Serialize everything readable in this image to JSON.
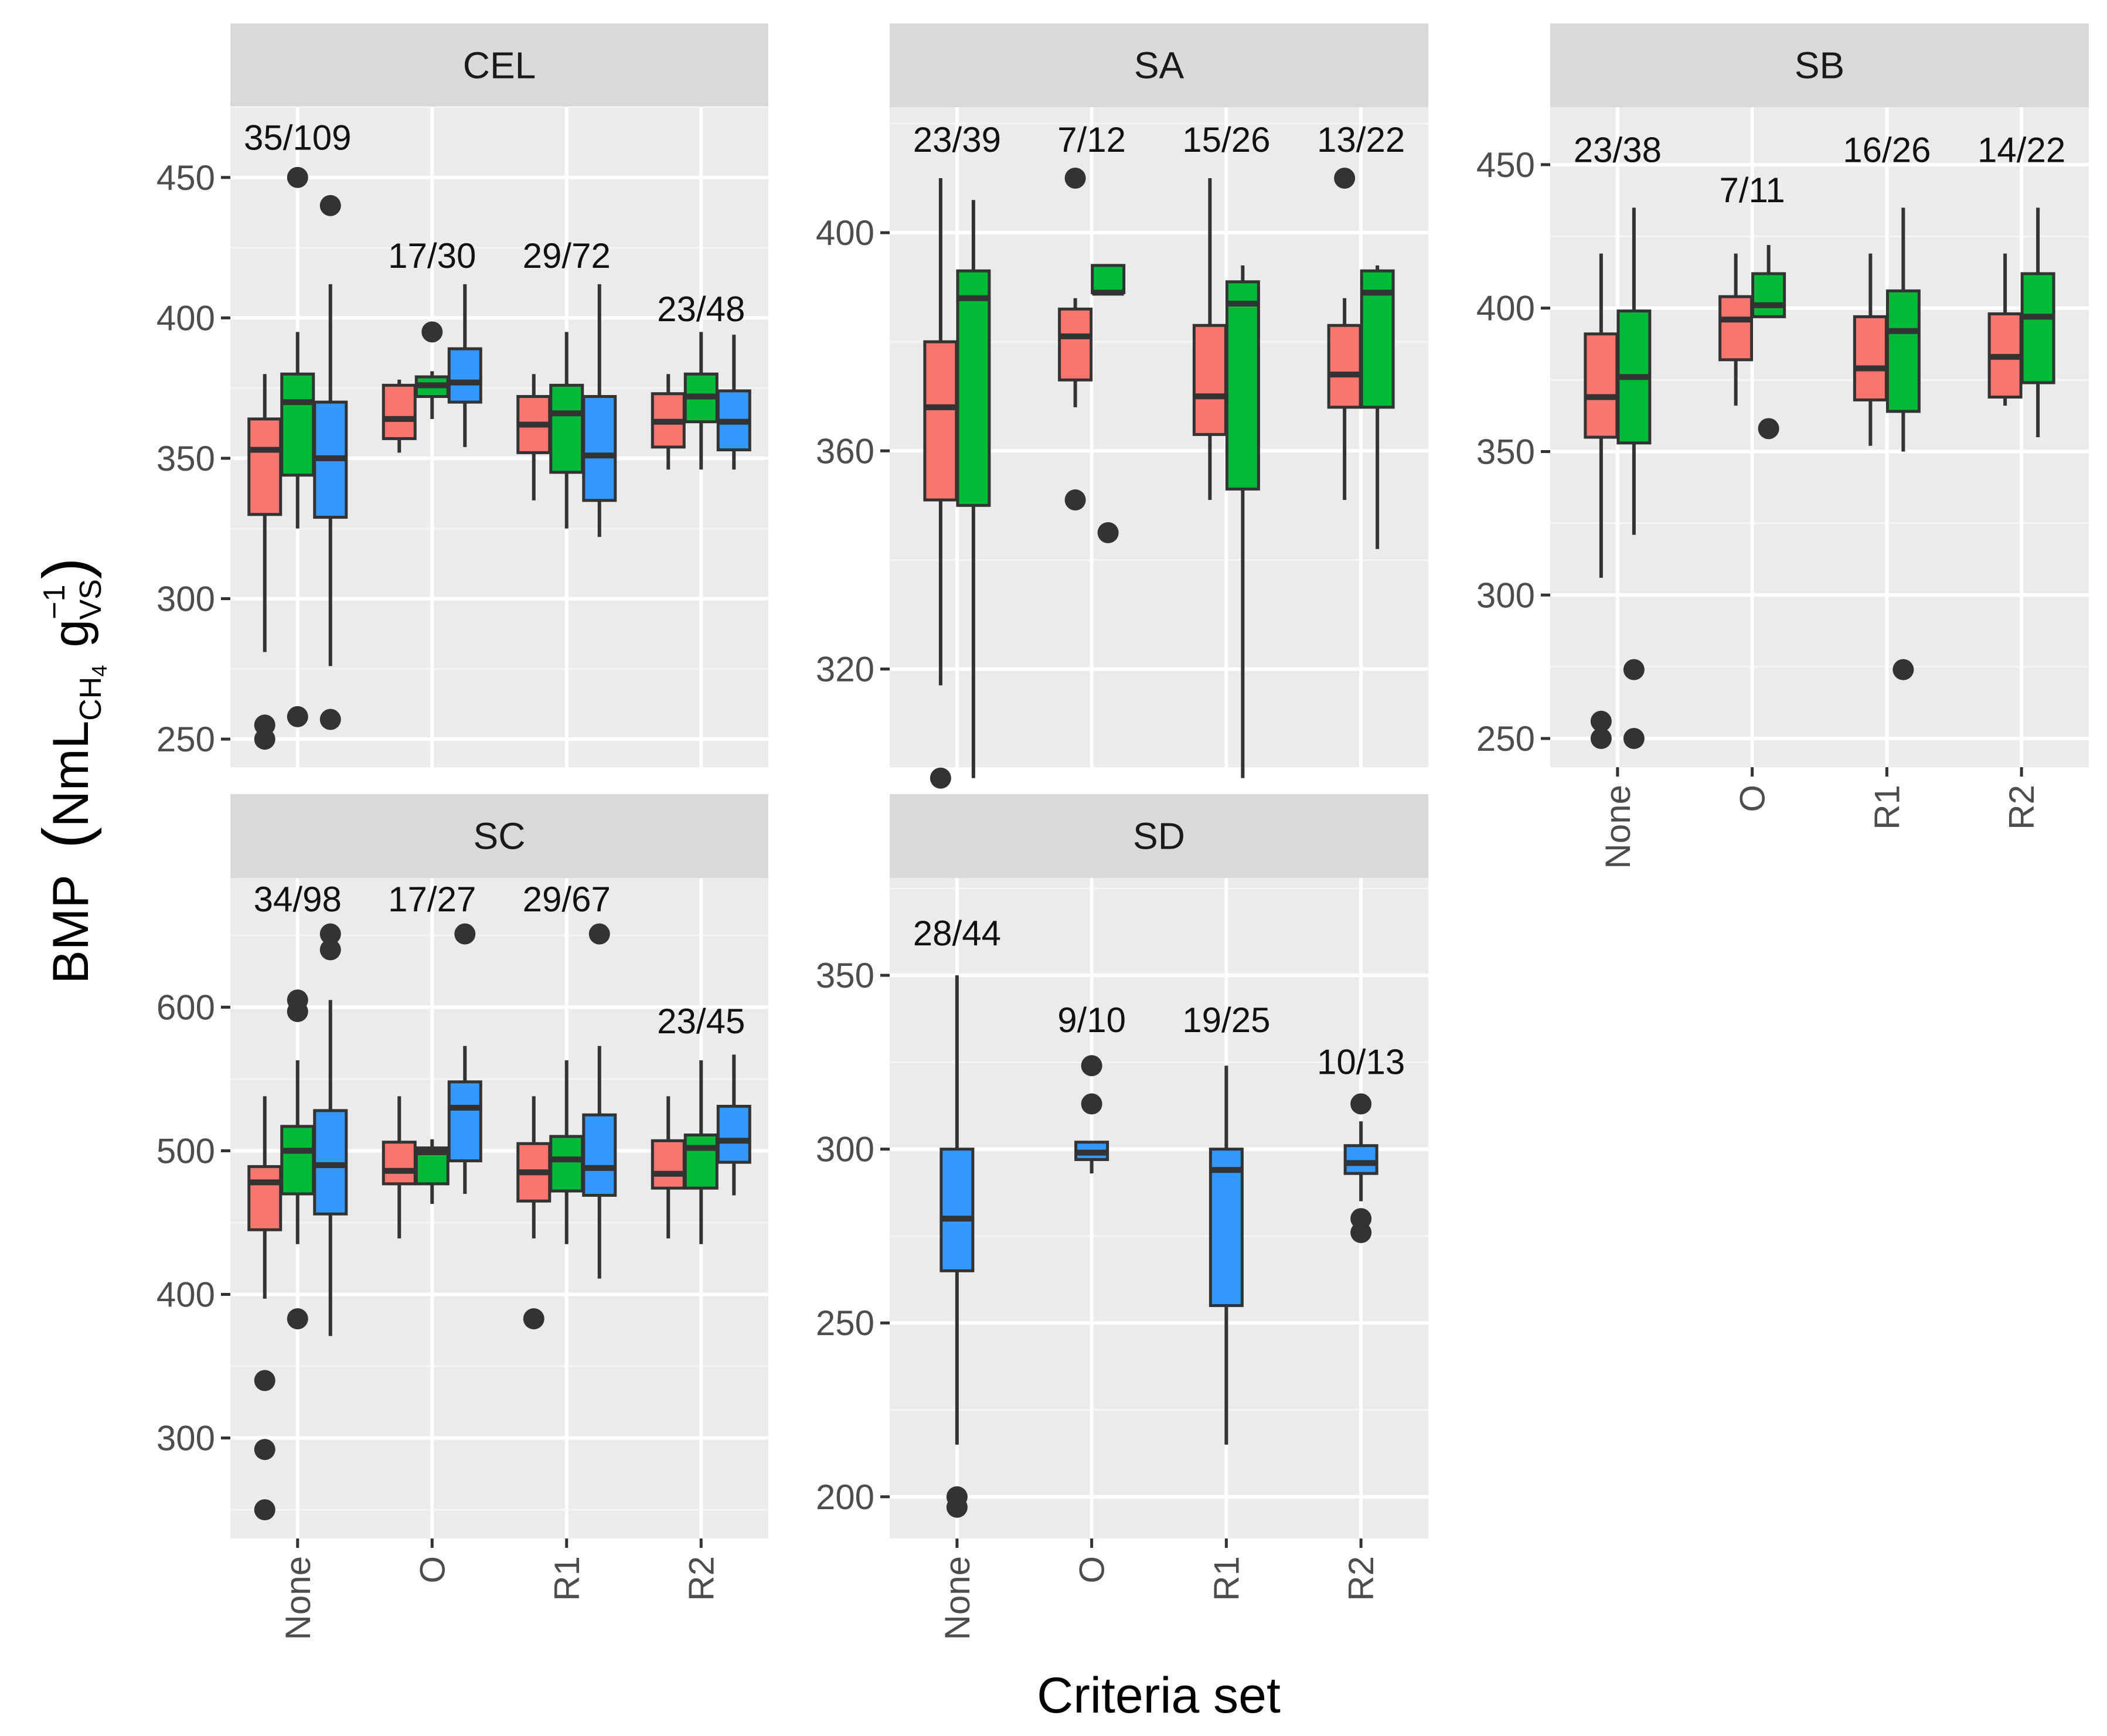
{
  "x_axis_title": "Criteria set",
  "y_axis_title": {
    "main": "BMP",
    "unit_prefix": "NmL",
    "unit_sub1": "CH",
    "unit_sub1b": "4",
    "unit_mid": "g",
    "unit_sup": "−1",
    "unit_sub2": "VS"
  },
  "x_categories": [
    "None",
    "O",
    "R1",
    "R2"
  ],
  "series_colors": {
    "red": "#f8766d",
    "green": "#00ba38",
    "blue": "#3399ff"
  },
  "chart_data": [
    {
      "type": "boxplot",
      "title": "CEL",
      "ylim": [
        240,
        475
      ],
      "yticks": [
        "250",
        "300",
        "350",
        "400",
        "450"
      ],
      "ytick_values": [
        250,
        300,
        350,
        400,
        450
      ],
      "counts": [
        {
          "category": "None",
          "label": "35/109",
          "y": 464
        },
        {
          "category": "O",
          "label": "17/30",
          "y": 422
        },
        {
          "category": "R1",
          "label": "29/72",
          "y": 422
        },
        {
          "category": "R2",
          "label": "23/48",
          "y": 403
        }
      ],
      "boxes": [
        {
          "category": "None",
          "series": "red",
          "q1": 330,
          "median": 353,
          "q3": 364,
          "lower": 281,
          "upper": 380,
          "outliers": [
            255,
            250
          ]
        },
        {
          "category": "None",
          "series": "green",
          "q1": 344,
          "median": 370,
          "q3": 380,
          "lower": 325,
          "upper": 395,
          "outliers": [
            450,
            258
          ]
        },
        {
          "category": "None",
          "series": "blue",
          "q1": 329,
          "median": 350,
          "q3": 370,
          "lower": 276,
          "upper": 412,
          "outliers": [
            440,
            257
          ]
        },
        {
          "category": "O",
          "series": "red",
          "q1": 357,
          "median": 364,
          "q3": 376,
          "lower": 352,
          "upper": 378,
          "outliers": []
        },
        {
          "category": "O",
          "series": "green",
          "q1": 372,
          "median": 376,
          "q3": 379,
          "lower": 364,
          "upper": 381,
          "outliers": [
            395
          ]
        },
        {
          "category": "O",
          "series": "blue",
          "q1": 370,
          "median": 377,
          "q3": 389,
          "lower": 354,
          "upper": 412,
          "outliers": []
        },
        {
          "category": "R1",
          "series": "red",
          "q1": 352,
          "median": 362,
          "q3": 372,
          "lower": 335,
          "upper": 380,
          "outliers": []
        },
        {
          "category": "R1",
          "series": "green",
          "q1": 345,
          "median": 366,
          "q3": 376,
          "lower": 325,
          "upper": 395,
          "outliers": []
        },
        {
          "category": "R1",
          "series": "blue",
          "q1": 335,
          "median": 351,
          "q3": 372,
          "lower": 322,
          "upper": 412,
          "outliers": []
        },
        {
          "category": "R2",
          "series": "red",
          "q1": 354,
          "median": 363,
          "q3": 373,
          "lower": 346,
          "upper": 380,
          "outliers": []
        },
        {
          "category": "R2",
          "series": "green",
          "q1": 363,
          "median": 372,
          "q3": 380,
          "lower": 346,
          "upper": 395,
          "outliers": []
        },
        {
          "category": "R2",
          "series": "blue",
          "q1": 353,
          "median": 363,
          "q3": 374,
          "lower": 346,
          "upper": 394,
          "outliers": []
        }
      ]
    },
    {
      "type": "boxplot",
      "title": "SA",
      "ylim": [
        302,
        423
      ],
      "yticks": [
        "320",
        "360",
        "400"
      ],
      "ytick_values": [
        320,
        360,
        400
      ],
      "counts": [
        {
          "category": "None",
          "label": "23/39",
          "y": 417
        },
        {
          "category": "O",
          "label": "7/12",
          "y": 417
        },
        {
          "category": "R1",
          "label": "15/26",
          "y": 417
        },
        {
          "category": "R2",
          "label": "13/22",
          "y": 417
        }
      ],
      "boxes": [
        {
          "category": "None",
          "series": "red",
          "q1": 351,
          "median": 368,
          "q3": 380,
          "lower": 317,
          "upper": 410,
          "outliers": [
            300
          ]
        },
        {
          "category": "None",
          "series": "green",
          "q1": 350,
          "median": 388,
          "q3": 393,
          "lower": 300,
          "upper": 406,
          "outliers": []
        },
        {
          "category": "O",
          "series": "red",
          "q1": 373,
          "median": 381,
          "q3": 386,
          "lower": 368,
          "upper": 388,
          "outliers": [
            410,
            351
          ]
        },
        {
          "category": "O",
          "series": "green",
          "q1": 389,
          "median": 389,
          "q3": 394,
          "lower": 389,
          "upper": 394,
          "outliers": [
            345
          ]
        },
        {
          "category": "R1",
          "series": "red",
          "q1": 363,
          "median": 370,
          "q3": 383,
          "lower": 351,
          "upper": 410,
          "outliers": []
        },
        {
          "category": "R1",
          "series": "green",
          "q1": 353,
          "median": 387,
          "q3": 391,
          "lower": 300,
          "upper": 394,
          "outliers": []
        },
        {
          "category": "R2",
          "series": "red",
          "q1": 368,
          "median": 374,
          "q3": 383,
          "lower": 351,
          "upper": 388,
          "outliers": [
            410
          ]
        },
        {
          "category": "R2",
          "series": "green",
          "q1": 368,
          "median": 389,
          "q3": 393,
          "lower": 342,
          "upper": 394,
          "outliers": []
        }
      ]
    },
    {
      "type": "boxplot",
      "title": "SB",
      "ylim": [
        240,
        470
      ],
      "yticks": [
        "250",
        "300",
        "350",
        "400",
        "450"
      ],
      "ytick_values": [
        250,
        300,
        350,
        400,
        450
      ],
      "counts": [
        {
          "category": "None",
          "label": "23/38",
          "y": 455
        },
        {
          "category": "O",
          "label": "7/11",
          "y": 441
        },
        {
          "category": "R1",
          "label": "16/26",
          "y": 455
        },
        {
          "category": "R2",
          "label": "14/22",
          "y": 455
        }
      ],
      "boxes": [
        {
          "category": "None",
          "series": "red",
          "q1": 355,
          "median": 369,
          "q3": 391,
          "lower": 306,
          "upper": 419,
          "outliers": [
            256,
            250
          ]
        },
        {
          "category": "None",
          "series": "green",
          "q1": 353,
          "median": 376,
          "q3": 399,
          "lower": 321,
          "upper": 435,
          "outliers": [
            274,
            250
          ]
        },
        {
          "category": "O",
          "series": "red",
          "q1": 382,
          "median": 396,
          "q3": 404,
          "lower": 366,
          "upper": 419,
          "outliers": []
        },
        {
          "category": "O",
          "series": "green",
          "q1": 397,
          "median": 401,
          "q3": 412,
          "lower": 397,
          "upper": 422,
          "outliers": [
            358
          ]
        },
        {
          "category": "R1",
          "series": "red",
          "q1": 368,
          "median": 379,
          "q3": 397,
          "lower": 352,
          "upper": 419,
          "outliers": []
        },
        {
          "category": "R1",
          "series": "green",
          "q1": 364,
          "median": 392,
          "q3": 406,
          "lower": 350,
          "upper": 435,
          "outliers": [
            274
          ]
        },
        {
          "category": "R2",
          "series": "red",
          "q1": 369,
          "median": 383,
          "q3": 398,
          "lower": 366,
          "upper": 419,
          "outliers": []
        },
        {
          "category": "R2",
          "series": "green",
          "q1": 374,
          "median": 397,
          "q3": 412,
          "lower": 355,
          "upper": 435,
          "outliers": []
        }
      ]
    },
    {
      "type": "boxplot",
      "title": "SC",
      "ylim": [
        230,
        690
      ],
      "yticks": [
        "300",
        "400",
        "500",
        "600"
      ],
      "ytick_values": [
        300,
        400,
        500,
        600
      ],
      "counts": [
        {
          "category": "None",
          "label": "34/98",
          "y": 675
        },
        {
          "category": "O",
          "label": "17/27",
          "y": 675
        },
        {
          "category": "R1",
          "label": "29/67",
          "y": 675
        },
        {
          "category": "R2",
          "label": "23/45",
          "y": 590
        }
      ],
      "boxes": [
        {
          "category": "None",
          "series": "red",
          "q1": 445,
          "median": 478,
          "q3": 489,
          "lower": 397,
          "upper": 538,
          "outliers": [
            340,
            292,
            250
          ]
        },
        {
          "category": "None",
          "series": "green",
          "q1": 470,
          "median": 500,
          "q3": 517,
          "lower": 435,
          "upper": 563,
          "outliers": [
            605,
            597,
            383
          ]
        },
        {
          "category": "None",
          "series": "blue",
          "q1": 456,
          "median": 490,
          "q3": 528,
          "lower": 371,
          "upper": 605,
          "outliers": [
            651,
            640
          ]
        },
        {
          "category": "O",
          "series": "red",
          "q1": 477,
          "median": 486,
          "q3": 506,
          "lower": 439,
          "upper": 538,
          "outliers": []
        },
        {
          "category": "O",
          "series": "green",
          "q1": 477,
          "median": 499,
          "q3": 502,
          "lower": 463,
          "upper": 508,
          "outliers": []
        },
        {
          "category": "O",
          "series": "blue",
          "q1": 493,
          "median": 530,
          "q3": 548,
          "lower": 470,
          "upper": 573,
          "outliers": [
            651
          ]
        },
        {
          "category": "R1",
          "series": "red",
          "q1": 465,
          "median": 485,
          "q3": 505,
          "lower": 439,
          "upper": 538,
          "outliers": [
            383
          ]
        },
        {
          "category": "R1",
          "series": "green",
          "q1": 472,
          "median": 494,
          "q3": 510,
          "lower": 435,
          "upper": 563,
          "outliers": []
        },
        {
          "category": "R1",
          "series": "blue",
          "q1": 469,
          "median": 488,
          "q3": 525,
          "lower": 411,
          "upper": 573,
          "outliers": [
            651
          ]
        },
        {
          "category": "R2",
          "series": "red",
          "q1": 474,
          "median": 484,
          "q3": 507,
          "lower": 439,
          "upper": 538,
          "outliers": []
        },
        {
          "category": "R2",
          "series": "green",
          "q1": 474,
          "median": 502,
          "q3": 511,
          "lower": 435,
          "upper": 563,
          "outliers": []
        },
        {
          "category": "R2",
          "series": "blue",
          "q1": 492,
          "median": 507,
          "q3": 531,
          "lower": 469,
          "upper": 567,
          "outliers": []
        }
      ]
    },
    {
      "type": "boxplot",
      "title": "SD",
      "ylim": [
        188,
        378
      ],
      "yticks": [
        "200",
        "250",
        "300",
        "350"
      ],
      "ytick_values": [
        200,
        250,
        300,
        350
      ],
      "counts": [
        {
          "category": "None",
          "label": "28/44",
          "y": 362
        },
        {
          "category": "O",
          "label": "9/10",
          "y": 337
        },
        {
          "category": "R1",
          "label": "19/25",
          "y": 337
        },
        {
          "category": "R2",
          "label": "10/13",
          "y": 325
        }
      ],
      "boxes": [
        {
          "category": "None",
          "series": "blue",
          "q1": 265,
          "median": 280,
          "q3": 300,
          "lower": 215,
          "upper": 350,
          "outliers": [
            200,
            197
          ]
        },
        {
          "category": "O",
          "series": "blue",
          "q1": 297,
          "median": 299,
          "q3": 302,
          "lower": 293,
          "upper": 302,
          "outliers": [
            324,
            313
          ]
        },
        {
          "category": "R1",
          "series": "blue",
          "q1": 255,
          "median": 294,
          "q3": 300,
          "lower": 215,
          "upper": 324,
          "outliers": []
        },
        {
          "category": "R2",
          "series": "blue",
          "q1": 293,
          "median": 296,
          "q3": 301,
          "lower": 285,
          "upper": 308,
          "outliers": [
            313,
            280,
            276
          ]
        }
      ]
    }
  ]
}
